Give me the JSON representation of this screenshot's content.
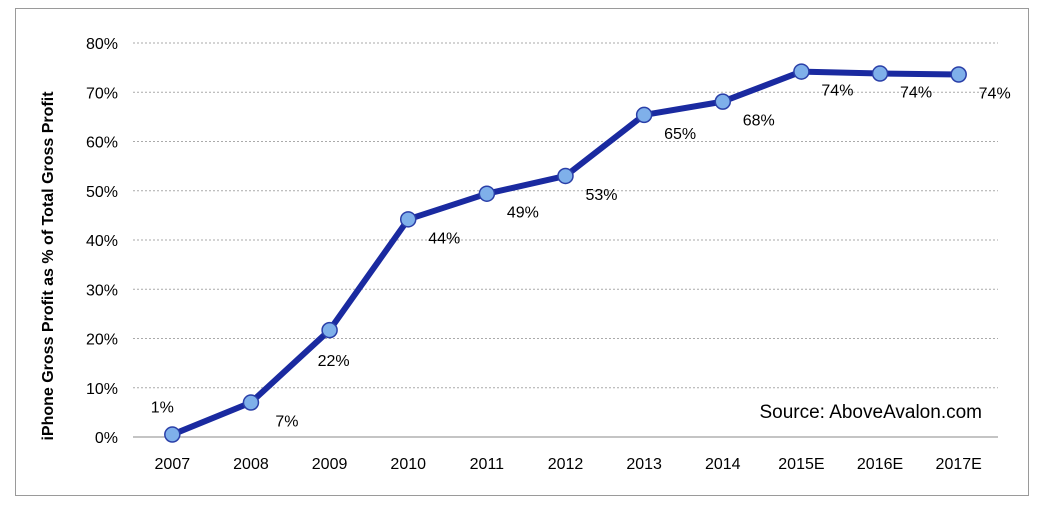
{
  "chart_data": {
    "type": "line",
    "categories": [
      "2007",
      "2008",
      "2009",
      "2010",
      "2011",
      "2012",
      "2013",
      "2014",
      "2015E",
      "2016E",
      "2017E"
    ],
    "values": [
      0.5,
      7,
      21.7,
      44.2,
      49.4,
      53,
      65.4,
      68.1,
      74.2,
      73.8,
      73.6
    ],
    "data_labels": [
      "1%",
      "7%",
      "22%",
      "44%",
      "49%",
      "53%",
      "65%",
      "68%",
      "74%",
      "74%",
      "74%"
    ],
    "y_ticks": [
      "0%",
      "10%",
      "20%",
      "30%",
      "40%",
      "50%",
      "60%",
      "70%",
      "80%"
    ],
    "ylim": [
      0,
      80
    ],
    "ylabel": "iPhone Gross Profit as % of Total Gross Profit",
    "xlabel": "",
    "annotation": "Source: AboveAvalon.com",
    "grid": true,
    "colors": {
      "line": "#1a2aa0",
      "marker_fill": "#7fb0ea",
      "marker_stroke": "#2a3fa8",
      "grid": "#aaaaaa"
    }
  }
}
